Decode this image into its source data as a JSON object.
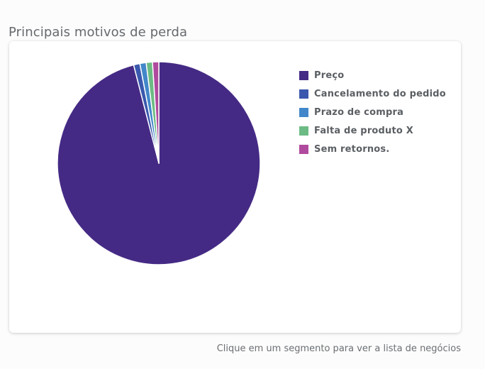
{
  "page": {
    "title": "Principais motivos de perda",
    "footer_hint": "Clique em um segmento para ver a lista de negócios"
  },
  "chart_data": {
    "type": "pie",
    "title": "Principais motivos de perda",
    "categories": [
      "Preço",
      "Cancelamento do pedido",
      "Prazo de compra",
      "Falta de produto X",
      "Sem retornos."
    ],
    "values": [
      96,
      1,
      1,
      1,
      1
    ],
    "colors": [
      "#452a85",
      "#3a58ad",
      "#4287c9",
      "#6cbb84",
      "#b04a9e"
    ],
    "start_angle_deg": 0,
    "direction": "clockwise",
    "legend_position": "right",
    "slice_border_color": "#ffffff"
  },
  "legend": {
    "items": [
      {
        "label": "Preço",
        "color": "#452a85"
      },
      {
        "label": "Cancelamento do pedido",
        "color": "#3a58ad"
      },
      {
        "label": "Prazo de compra",
        "color": "#4287c9"
      },
      {
        "label": "Falta de produto X",
        "color": "#6cbb84"
      },
      {
        "label": "Sem retornos.",
        "color": "#b04a9e"
      }
    ]
  }
}
